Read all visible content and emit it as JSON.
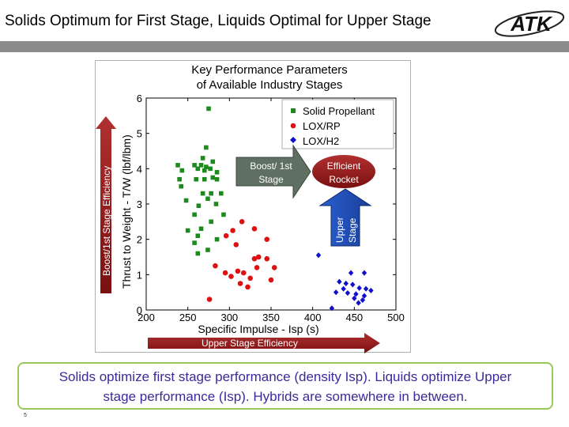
{
  "slide": {
    "title": "Solids Optimum for First Stage, Liquids Optimal for Upper Stage",
    "caption_line1": "Solids optimize first stage performance (density Isp).  Liquids optimize Upper",
    "caption_line2": "stage performance (Isp).  Hybrids are somewhere in between.",
    "page_number": "5",
    "logo_text": "ATK",
    "colors": {
      "header_bar": "#8c8c8c",
      "caption_text": "#3a2a9a",
      "caption_border": "#9bc85a"
    }
  },
  "annotations": {
    "boost_arrow": "Boost/1st Stage Efficiency",
    "upper_arrow": "Upper Stage Efficiency",
    "boost_box_line1": "Boost/ 1st",
    "boost_box_line2": "Stage",
    "efficient_line1": "Efficient",
    "efficient_line2": "Rocket",
    "upper_box_line1": "Upper",
    "upper_box_line2": "Stage"
  },
  "chart_data": {
    "type": "scatter",
    "title_line1": "Key Performance Parameters",
    "title_line2": "of Available Industry Stages",
    "xlabel": "Specific Impulse - Isp (s)",
    "ylabel": "Thrust to Weight - T/W (lbf/lbm)",
    "xlim": [
      200,
      500
    ],
    "ylim": [
      0,
      6
    ],
    "xticks": [
      200,
      250,
      300,
      350,
      400,
      450,
      500
    ],
    "yticks": [
      0,
      1,
      2,
      3,
      4,
      5,
      6
    ],
    "grid": false,
    "legend_position": "top-right",
    "series": [
      {
        "name": "Solid Propellant",
        "color": "#1e8a1e",
        "marker": "square",
        "points": [
          [
            275,
            5.7
          ],
          [
            272,
            4.6
          ],
          [
            268,
            4.3
          ],
          [
            280,
            4.2
          ],
          [
            238,
            4.1
          ],
          [
            258,
            4.1
          ],
          [
            266,
            4.1
          ],
          [
            272,
            4.05
          ],
          [
            277,
            4.0
          ],
          [
            262,
            4.0
          ],
          [
            270,
            3.95
          ],
          [
            285,
            3.9
          ],
          [
            243,
            3.95
          ],
          [
            240,
            3.7
          ],
          [
            260,
            3.7
          ],
          [
            270,
            3.7
          ],
          [
            280,
            3.75
          ],
          [
            285,
            3.7
          ],
          [
            242,
            3.5
          ],
          [
            268,
            3.3
          ],
          [
            278,
            3.3
          ],
          [
            290,
            3.3
          ],
          [
            274,
            3.15
          ],
          [
            248,
            3.1
          ],
          [
            263,
            2.95
          ],
          [
            284,
            3.0
          ],
          [
            258,
            2.7
          ],
          [
            293,
            2.7
          ],
          [
            278,
            2.5
          ],
          [
            266,
            2.3
          ],
          [
            250,
            2.25
          ],
          [
            262,
            2.1
          ],
          [
            285,
            2.0
          ],
          [
            258,
            1.9
          ],
          [
            274,
            1.7
          ],
          [
            262,
            1.6
          ]
        ]
      },
      {
        "name": "LOX/RP",
        "color": "#dd1111",
        "marker": "circle",
        "points": [
          [
            315,
            2.5
          ],
          [
            330,
            2.3
          ],
          [
            304,
            2.25
          ],
          [
            296,
            2.1
          ],
          [
            345,
            2.0
          ],
          [
            308,
            1.85
          ],
          [
            335,
            1.5
          ],
          [
            330,
            1.45
          ],
          [
            345,
            1.45
          ],
          [
            283,
            1.25
          ],
          [
            333,
            1.2
          ],
          [
            354,
            1.2
          ],
          [
            310,
            1.1
          ],
          [
            295,
            1.05
          ],
          [
            317,
            1.05
          ],
          [
            302,
            0.95
          ],
          [
            325,
            0.9
          ],
          [
            350,
            0.85
          ],
          [
            313,
            0.75
          ],
          [
            322,
            0.65
          ],
          [
            276,
            0.3
          ]
        ]
      },
      {
        "name": "LOX/H2",
        "color": "#1010cc",
        "marker": "diamond",
        "points": [
          [
            407,
            1.55
          ],
          [
            446,
            1.05
          ],
          [
            462,
            1.05
          ],
          [
            432,
            0.8
          ],
          [
            440,
            0.75
          ],
          [
            448,
            0.72
          ],
          [
            437,
            0.6
          ],
          [
            456,
            0.62
          ],
          [
            464,
            0.6
          ],
          [
            470,
            0.55
          ],
          [
            428,
            0.5
          ],
          [
            442,
            0.48
          ],
          [
            452,
            0.45
          ],
          [
            462,
            0.4
          ],
          [
            450,
            0.33
          ],
          [
            460,
            0.28
          ],
          [
            455,
            0.2
          ],
          [
            423,
            0.05
          ]
        ]
      }
    ]
  }
}
